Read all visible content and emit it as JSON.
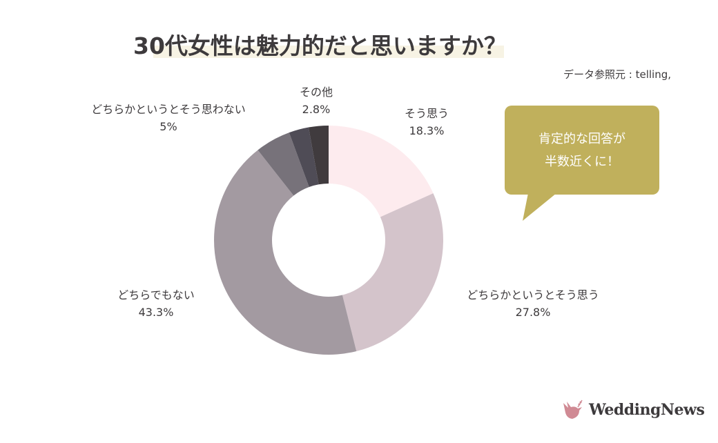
{
  "chart_data": {
    "type": "pie",
    "variant": "donut",
    "title": "30代女性は魅力的だと思いますか？",
    "source": "データ参照元 : telling,",
    "slices": [
      {
        "label": "そう思う",
        "value": 18.3,
        "value_label": "18.3%",
        "color": "#fdebee"
      },
      {
        "label": "どちらかというとそう思う",
        "value": 27.8,
        "value_label": "27.8%",
        "color": "#d4c4cb"
      },
      {
        "label": "どちらでもない",
        "value": 43.3,
        "value_label": "43.3%",
        "color": "#a39aa1"
      },
      {
        "label": "どちらかというとそう思わない",
        "value": 5,
        "value_label": "5%",
        "color": "#77727a"
      },
      {
        "label": "",
        "value": 2.8,
        "value_label": "",
        "color": "#4f4c56"
      },
      {
        "label": "その他",
        "value": 2.8,
        "value_label": "2.8%",
        "color": "#403b3e"
      }
    ]
  },
  "callout": {
    "line1": "肯定的な回答が",
    "line2": "半数近くに！",
    "color": "#c0b05c"
  },
  "logo": {
    "text": "WeddingNews",
    "color": "#d08a94"
  }
}
